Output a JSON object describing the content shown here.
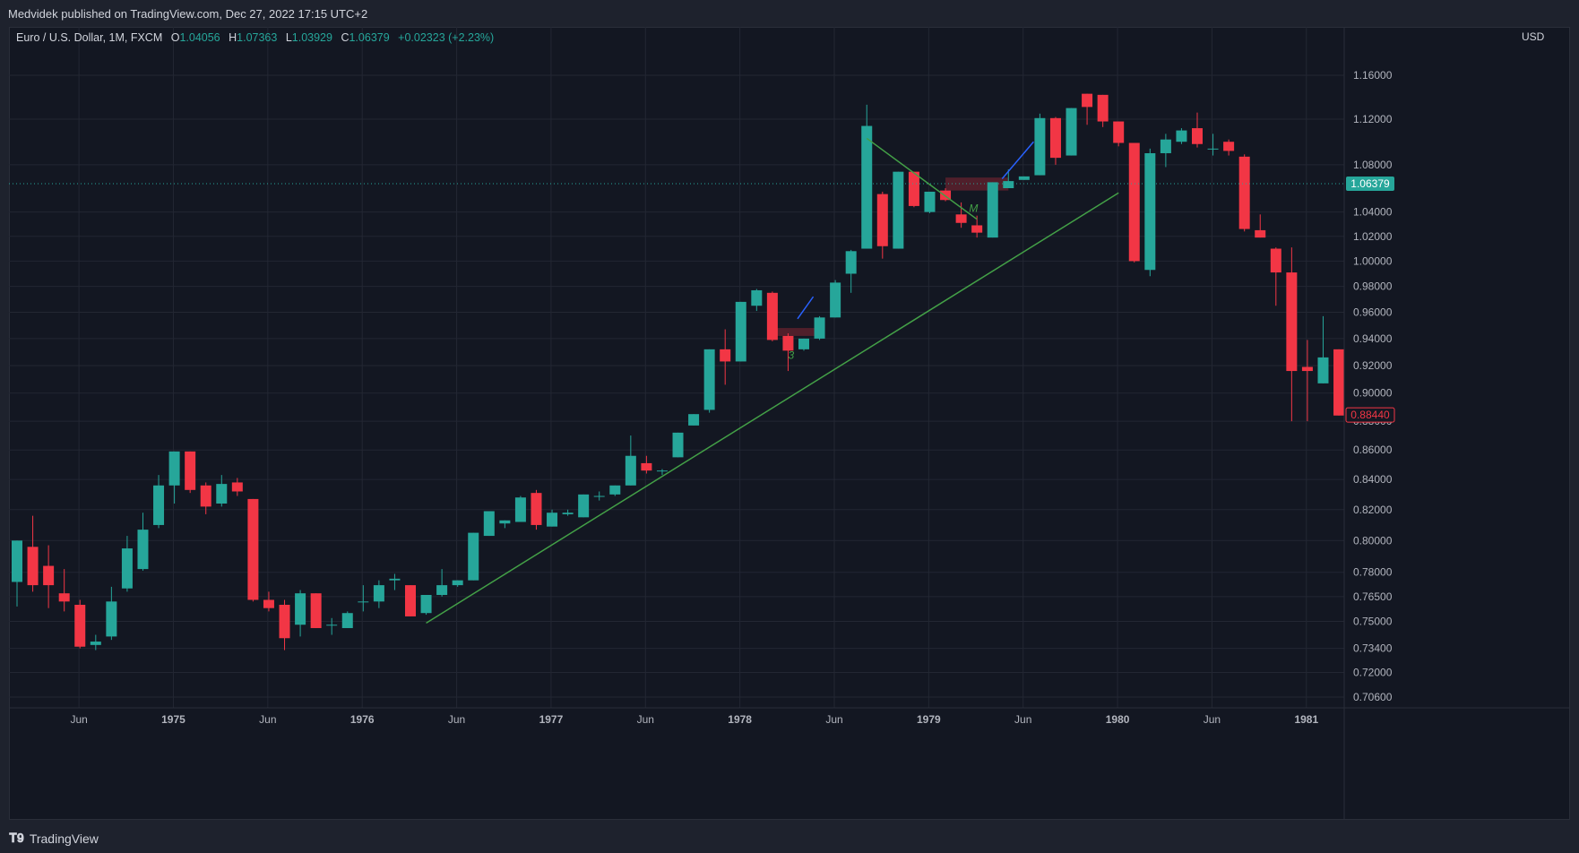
{
  "header": {
    "published": "Medvidek published on TradingView.com, Dec 27, 2022 17:15 UTC+2"
  },
  "legend": {
    "symbol": "Euro / U.S. Dollar, 1M, FXCM",
    "o_label": "O",
    "o_value": "1.04056",
    "h_label": "H",
    "h_value": "1.07363",
    "l_label": "L",
    "l_value": "1.03929",
    "c_label": "C",
    "c_value": "1.06379",
    "change": "+0.02323 (+2.23%)"
  },
  "price_axis": {
    "currency": "USD",
    "ticks": [
      "1.16000",
      "1.12000",
      "1.08000",
      "1.04000",
      "1.02000",
      "1.00000",
      "0.98000",
      "0.96000",
      "0.94000",
      "0.92000",
      "0.90000",
      "0.88000",
      "0.86000",
      "0.84000",
      "0.82000",
      "0.80000",
      "0.78000",
      "0.76500",
      "0.75000",
      "0.73400",
      "0.72000",
      "0.70600"
    ],
    "current_price_label": "1.06379",
    "last_price_label": "0.88440"
  },
  "time_axis": {
    "labels": [
      "Jun",
      "1975",
      "Jun",
      "1976",
      "Jun",
      "1977",
      "Jun",
      "1978",
      "Jun",
      "1979",
      "Jun",
      "1980",
      "Jun",
      "1981"
    ]
  },
  "colors": {
    "up": "#26a69a",
    "down": "#f23645",
    "background": "#131722",
    "frame": "#1e222d",
    "grid": "#232733",
    "trendline": "#43a047",
    "blue_line": "#2962ff"
  },
  "chart_data": {
    "type": "candlestick",
    "title": "Euro / U.S. Dollar, 1M, FXCM",
    "y_scale": "log",
    "ylim": [
      0.7,
      1.18
    ],
    "x_start": "1974-04",
    "interval": "1M",
    "candles": [
      {
        "o": 0.774,
        "h": 0.8,
        "l": 0.759,
        "c": 0.8
      },
      {
        "o": 0.796,
        "h": 0.816,
        "l": 0.768,
        "c": 0.772
      },
      {
        "o": 0.784,
        "h": 0.797,
        "l": 0.758,
        "c": 0.772
      },
      {
        "o": 0.767,
        "h": 0.782,
        "l": 0.756,
        "c": 0.762
      },
      {
        "o": 0.76,
        "h": 0.763,
        "l": 0.734,
        "c": 0.735
      },
      {
        "o": 0.736,
        "h": 0.742,
        "l": 0.733,
        "c": 0.738
      },
      {
        "o": 0.741,
        "h": 0.771,
        "l": 0.739,
        "c": 0.762
      },
      {
        "o": 0.77,
        "h": 0.803,
        "l": 0.768,
        "c": 0.795
      },
      {
        "o": 0.782,
        "h": 0.818,
        "l": 0.781,
        "c": 0.807
      },
      {
        "o": 0.81,
        "h": 0.843,
        "l": 0.808,
        "c": 0.836
      },
      {
        "o": 0.836,
        "h": 0.859,
        "l": 0.824,
        "c": 0.859
      },
      {
        "o": 0.859,
        "h": 0.859,
        "l": 0.831,
        "c": 0.833
      },
      {
        "o": 0.836,
        "h": 0.838,
        "l": 0.817,
        "c": 0.822
      },
      {
        "o": 0.824,
        "h": 0.843,
        "l": 0.822,
        "c": 0.837
      },
      {
        "o": 0.838,
        "h": 0.841,
        "l": 0.829,
        "c": 0.832
      },
      {
        "o": 0.827,
        "h": 0.827,
        "l": 0.762,
        "c": 0.763
      },
      {
        "o": 0.763,
        "h": 0.768,
        "l": 0.756,
        "c": 0.758
      },
      {
        "o": 0.76,
        "h": 0.763,
        "l": 0.733,
        "c": 0.74
      },
      {
        "o": 0.748,
        "h": 0.769,
        "l": 0.741,
        "c": 0.767
      },
      {
        "o": 0.767,
        "h": 0.767,
        "l": 0.746,
        "c": 0.746
      },
      {
        "o": 0.748,
        "h": 0.752,
        "l": 0.742,
        "c": 0.748
      },
      {
        "o": 0.746,
        "h": 0.756,
        "l": 0.746,
        "c": 0.755
      },
      {
        "o": 0.762,
        "h": 0.772,
        "l": 0.756,
        "c": 0.762
      },
      {
        "o": 0.762,
        "h": 0.775,
        "l": 0.758,
        "c": 0.772
      },
      {
        "o": 0.775,
        "h": 0.779,
        "l": 0.769,
        "c": 0.776
      },
      {
        "o": 0.772,
        "h": 0.772,
        "l": 0.753,
        "c": 0.753
      },
      {
        "o": 0.755,
        "h": 0.766,
        "l": 0.754,
        "c": 0.766
      },
      {
        "o": 0.766,
        "h": 0.782,
        "l": 0.765,
        "c": 0.772
      },
      {
        "o": 0.772,
        "h": 0.775,
        "l": 0.771,
        "c": 0.775
      },
      {
        "o": 0.775,
        "h": 0.805,
        "l": 0.775,
        "c": 0.805
      },
      {
        "o": 0.803,
        "h": 0.819,
        "l": 0.803,
        "c": 0.819
      },
      {
        "o": 0.811,
        "h": 0.813,
        "l": 0.808,
        "c": 0.813
      },
      {
        "o": 0.812,
        "h": 0.829,
        "l": 0.812,
        "c": 0.828
      },
      {
        "o": 0.831,
        "h": 0.833,
        "l": 0.807,
        "c": 0.81
      },
      {
        "o": 0.809,
        "h": 0.82,
        "l": 0.809,
        "c": 0.818
      },
      {
        "o": 0.817,
        "h": 0.82,
        "l": 0.816,
        "c": 0.818
      },
      {
        "o": 0.815,
        "h": 0.83,
        "l": 0.815,
        "c": 0.83
      },
      {
        "o": 0.829,
        "h": 0.832,
        "l": 0.826,
        "c": 0.829
      },
      {
        "o": 0.83,
        "h": 0.836,
        "l": 0.829,
        "c": 0.836
      },
      {
        "o": 0.836,
        "h": 0.87,
        "l": 0.836,
        "c": 0.856
      },
      {
        "o": 0.851,
        "h": 0.856,
        "l": 0.844,
        "c": 0.846
      },
      {
        "o": 0.846,
        "h": 0.847,
        "l": 0.843,
        "c": 0.846
      },
      {
        "o": 0.855,
        "h": 0.872,
        "l": 0.855,
        "c": 0.872
      },
      {
        "o": 0.877,
        "h": 0.885,
        "l": 0.877,
        "c": 0.885
      },
      {
        "o": 0.888,
        "h": 0.932,
        "l": 0.886,
        "c": 0.932
      },
      {
        "o": 0.932,
        "h": 0.947,
        "l": 0.906,
        "c": 0.923
      },
      {
        "o": 0.923,
        "h": 0.968,
        "l": 0.923,
        "c": 0.968
      },
      {
        "o": 0.965,
        "h": 0.978,
        "l": 0.961,
        "c": 0.977
      },
      {
        "o": 0.975,
        "h": 0.976,
        "l": 0.938,
        "c": 0.939
      },
      {
        "o": 0.942,
        "h": 0.944,
        "l": 0.916,
        "c": 0.931
      },
      {
        "o": 0.932,
        "h": 0.94,
        "l": 0.931,
        "c": 0.94
      },
      {
        "o": 0.94,
        "h": 0.957,
        "l": 0.939,
        "c": 0.956
      },
      {
        "o": 0.956,
        "h": 0.985,
        "l": 0.956,
        "c": 0.983
      },
      {
        "o": 0.99,
        "h": 1.009,
        "l": 0.975,
        "c": 1.008
      },
      {
        "o": 1.01,
        "h": 1.133,
        "l": 1.01,
        "c": 1.114
      },
      {
        "o": 1.055,
        "h": 1.057,
        "l": 1.002,
        "c": 1.012
      },
      {
        "o": 1.01,
        "h": 1.074,
        "l": 1.01,
        "c": 1.074
      },
      {
        "o": 1.074,
        "h": 1.074,
        "l": 1.044,
        "c": 1.045
      },
      {
        "o": 1.04,
        "h": 1.057,
        "l": 1.039,
        "c": 1.057
      },
      {
        "o": 1.058,
        "h": 1.06,
        "l": 1.049,
        "c": 1.05
      },
      {
        "o": 1.038,
        "h": 1.048,
        "l": 1.027,
        "c": 1.031
      },
      {
        "o": 1.029,
        "h": 1.037,
        "l": 1.019,
        "c": 1.023
      },
      {
        "o": 1.019,
        "h": 1.065,
        "l": 1.019,
        "c": 1.065
      },
      {
        "o": 1.06,
        "h": 1.076,
        "l": 1.06,
        "c": 1.066
      },
      {
        "o": 1.067,
        "h": 1.07,
        "l": 1.067,
        "c": 1.07
      },
      {
        "o": 1.071,
        "h": 1.125,
        "l": 1.071,
        "c": 1.121
      },
      {
        "o": 1.121,
        "h": 1.122,
        "l": 1.08,
        "c": 1.086
      },
      {
        "o": 1.088,
        "h": 1.13,
        "l": 1.088,
        "c": 1.13
      },
      {
        "o": 1.143,
        "h": 1.143,
        "l": 1.115,
        "c": 1.131
      },
      {
        "o": 1.142,
        "h": 1.142,
        "l": 1.113,
        "c": 1.118
      },
      {
        "o": 1.118,
        "h": 1.118,
        "l": 1.096,
        "c": 1.099
      },
      {
        "o": 1.099,
        "h": 1.099,
        "l": 0.999,
        "c": 1.0
      },
      {
        "o": 0.993,
        "h": 1.094,
        "l": 0.988,
        "c": 1.09
      },
      {
        "o": 1.09,
        "h": 1.107,
        "l": 1.078,
        "c": 1.102
      },
      {
        "o": 1.1,
        "h": 1.112,
        "l": 1.098,
        "c": 1.11
      },
      {
        "o": 1.112,
        "h": 1.126,
        "l": 1.095,
        "c": 1.098
      },
      {
        "o": 1.094,
        "h": 1.107,
        "l": 1.088,
        "c": 1.094
      },
      {
        "o": 1.1,
        "h": 1.102,
        "l": 1.088,
        "c": 1.092
      },
      {
        "o": 1.087,
        "h": 1.089,
        "l": 1.024,
        "c": 1.026
      },
      {
        "o": 1.025,
        "h": 1.038,
        "l": 1.019,
        "c": 1.019
      },
      {
        "o": 1.01,
        "h": 1.011,
        "l": 0.965,
        "c": 0.991
      },
      {
        "o": 0.991,
        "h": 1.011,
        "l": 0.88,
        "c": 0.916
      },
      {
        "o": 0.919,
        "h": 0.939,
        "l": 0.88,
        "c": 0.916
      },
      {
        "o": 0.907,
        "h": 0.957,
        "l": 0.907,
        "c": 0.926
      },
      {
        "o": 0.932,
        "h": 0.932,
        "l": 0.884,
        "c": 0.884
      }
    ],
    "trendlines": [
      {
        "from": {
          "t": 26,
          "p": 0.749
        },
        "to": {
          "t": 70,
          "p": 1.056
        }
      },
      {
        "from": {
          "t": 54,
          "p": 1.103
        },
        "to": {
          "t": 61,
          "p": 1.034
        }
      }
    ],
    "zones": [
      {
        "t1": 48,
        "t2": 51,
        "p1": 0.942,
        "p2": 0.948
      },
      {
        "t1": 59,
        "t2": 63,
        "p1": 1.058,
        "p2": 1.069
      }
    ],
    "annotations": [
      {
        "text": "M",
        "t": 60.5,
        "p": 1.04
      },
      {
        "text": "3",
        "t": 49,
        "p": 0.925
      }
    ]
  }
}
